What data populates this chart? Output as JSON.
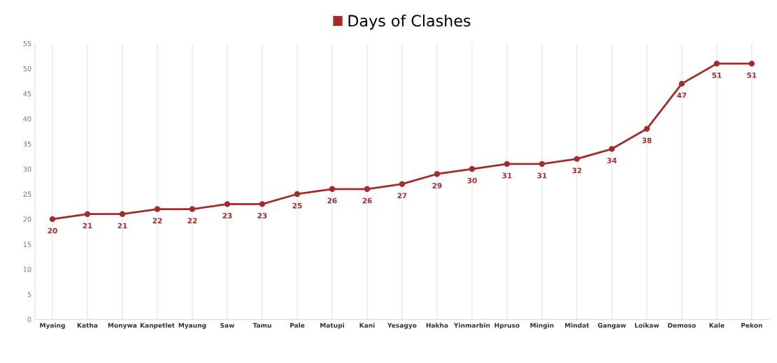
{
  "chart_data": {
    "type": "line",
    "categories": [
      "Myaing",
      "Katha",
      "Monywa",
      "Kanpetlet",
      "Myaung",
      "Saw",
      "Tamu",
      "Pale",
      "Matupi",
      "Kani",
      "Yesagyo",
      "Hakha",
      "Yinmarbin",
      "Hpruso",
      "Mingin",
      "Mindat",
      "Gangaw",
      "Loikaw",
      "Demoso",
      "Kale",
      "Pekon"
    ],
    "series": [
      {
        "name": "Days of Clashes",
        "color": "#a52a2a",
        "values": [
          20,
          21,
          21,
          22,
          22,
          23,
          23,
          25,
          26,
          26,
          27,
          29,
          30,
          31,
          31,
          32,
          34,
          38,
          47,
          51,
          51
        ]
      }
    ],
    "ylim": [
      0,
      55
    ],
    "yticks": [
      0,
      5,
      10,
      15,
      20,
      25,
      30,
      35,
      40,
      45,
      50,
      55
    ],
    "grid": "x",
    "legend": "top",
    "marker": "circle",
    "line_style": "solid",
    "data_labels": true
  }
}
